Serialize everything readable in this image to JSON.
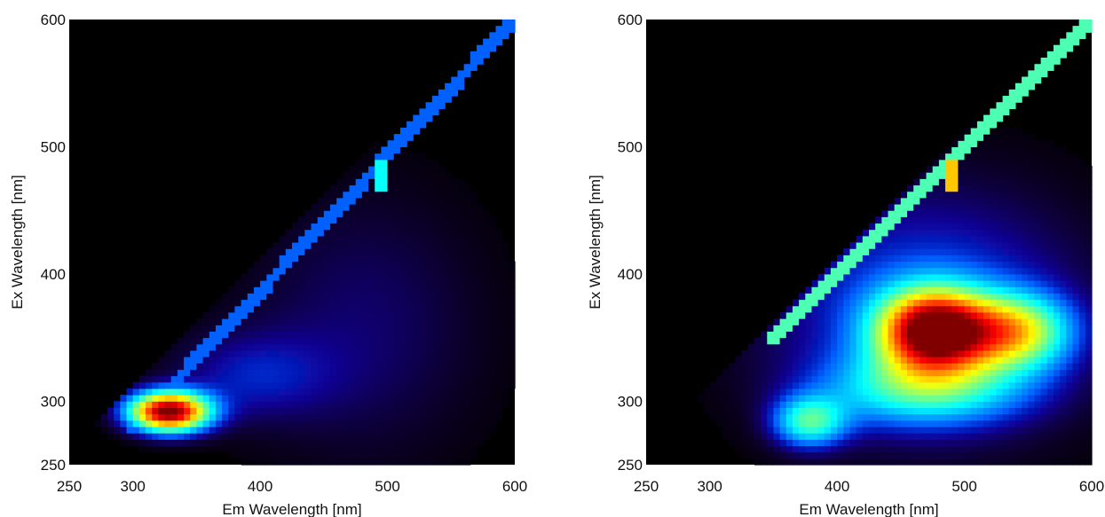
{
  "chart_data": [
    {
      "type": "heatmap",
      "title": "",
      "xlabel": "Em Wavelength [nm]",
      "ylabel": "Ex Wavelength [nm]",
      "xlim": [
        250,
        600
      ],
      "ylim": [
        250,
        600
      ],
      "xticks": [
        250,
        300,
        400,
        500,
        600
      ],
      "yticks": [
        250,
        300,
        400,
        500,
        600
      ],
      "colormap": "jet on black",
      "background_color": "#000000",
      "rayleigh_scatter_line": {
        "from": [
          300,
          280
        ],
        "to": [
          600,
          600
        ],
        "intensity": 0.22
      },
      "scatter_spot": {
        "em": 495,
        "ex": 478,
        "intensity": 0.38
      },
      "peaks": [
        {
          "em": 328,
          "ex": 292,
          "sigma_em": 22,
          "sigma_ex": 11,
          "intensity": 1.0
        },
        {
          "em": 390,
          "ex": 320,
          "sigma_em": 45,
          "sigma_ex": 25,
          "intensity": 0.13
        },
        {
          "em": 480,
          "ex": 360,
          "sigma_em": 70,
          "sigma_ex": 80,
          "intensity": 0.1
        }
      ]
    },
    {
      "type": "heatmap",
      "title": "",
      "xlabel": "Em Wavelength [nm]",
      "ylabel": "Ex Wavelength [nm]",
      "xlim": [
        250,
        600
      ],
      "ylim": [
        250,
        600
      ],
      "xticks": [
        250,
        300,
        400,
        500,
        600
      ],
      "yticks": [
        250,
        300,
        400,
        500,
        600
      ],
      "colormap": "jet on black",
      "background_color": "#000000",
      "rayleigh_scatter_line": {
        "from": [
          350,
          350
        ],
        "to": [
          600,
          600
        ],
        "intensity": 0.45
      },
      "scatter_spot": {
        "em": 490,
        "ex": 478,
        "intensity": 0.68
      },
      "peaks": [
        {
          "em": 476,
          "ex": 356,
          "sigma_em": 30,
          "sigma_ex": 22,
          "intensity": 0.92
        },
        {
          "em": 540,
          "ex": 355,
          "sigma_em": 30,
          "sigma_ex": 20,
          "intensity": 0.5
        },
        {
          "em": 470,
          "ex": 310,
          "sigma_em": 55,
          "sigma_ex": 20,
          "intensity": 0.32
        },
        {
          "em": 378,
          "ex": 284,
          "sigma_em": 20,
          "sigma_ex": 14,
          "intensity": 0.38
        },
        {
          "em": 470,
          "ex": 370,
          "sigma_em": 90,
          "sigma_ex": 70,
          "intensity": 0.22
        }
      ]
    }
  ]
}
